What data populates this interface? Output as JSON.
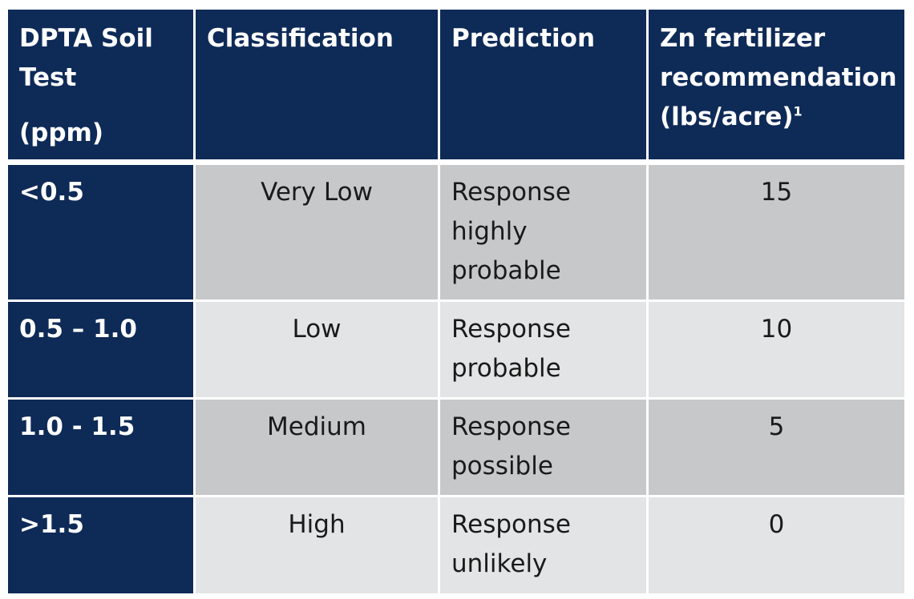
{
  "table": {
    "headers": {
      "soil_test": [
        "DPTA Soil",
        "Test",
        "(ppm)"
      ],
      "classification": "Classification",
      "prediction": "Prediction",
      "zn": [
        "Zn fertilizer",
        "recommendation",
        "(lbs/acre)"
      ],
      "zn_sup": "1"
    },
    "rows": [
      {
        "test": "<0.5",
        "classification": "Very Low",
        "prediction": [
          "Response",
          "highly",
          "probable"
        ],
        "zn": "15"
      },
      {
        "test": "0.5 – 1.0",
        "classification": "Low",
        "prediction": [
          "Response",
          "probable"
        ],
        "zn": "10"
      },
      {
        "test": "1.0 - 1.5",
        "classification": "Medium",
        "prediction": [
          "Response",
          "possible"
        ],
        "zn": "5"
      },
      {
        "test": ">1.5",
        "classification": "High",
        "prediction": [
          "Response",
          "unlikely"
        ],
        "zn": "0"
      }
    ]
  }
}
